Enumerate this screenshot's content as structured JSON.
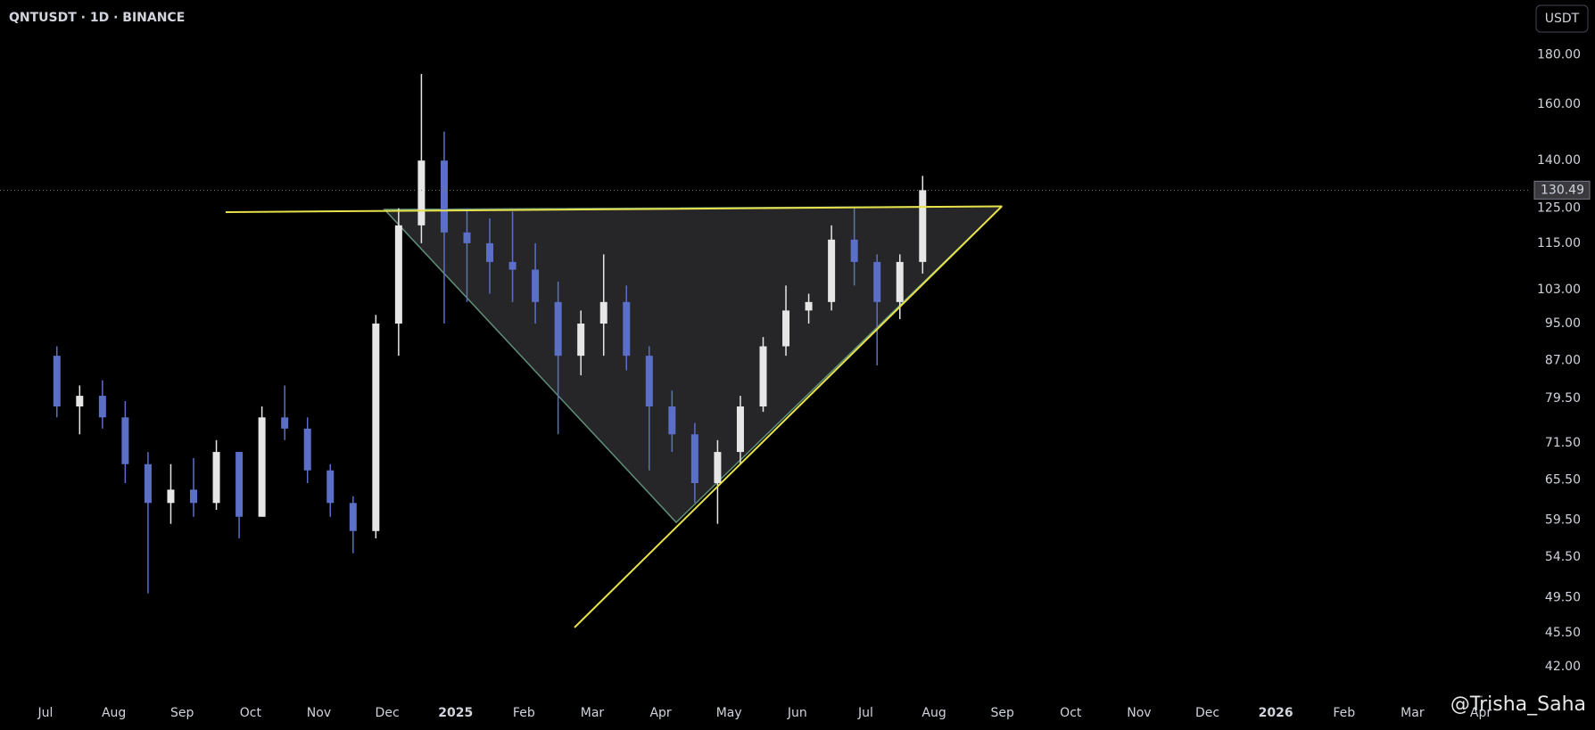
{
  "chart_data": {
    "type": "candlestick",
    "title": "QNTUSDT · 1D · BINANCE",
    "currency": "USDT",
    "watermark": "@Trisha_Saha",
    "log_scale": true,
    "grid": false,
    "up_color": "#e6e6e6",
    "down_color": "#5b6fc7",
    "x": [
      "2024-07",
      "2024-07",
      "2024-07",
      "2024-08",
      "2024-08",
      "2024-08",
      "2024-09",
      "2024-09",
      "2024-09",
      "2024-10",
      "2024-10",
      "2024-10",
      "2024-11",
      "2024-11",
      "2024-11",
      "2024-12",
      "2024-12",
      "2024-12",
      "2025-01",
      "2025-01",
      "2025-01",
      "2025-02",
      "2025-02",
      "2025-02",
      "2025-03",
      "2025-03",
      "2025-03",
      "2025-04",
      "2025-04",
      "2025-04",
      "2025-05",
      "2025-05",
      "2025-05",
      "2025-06",
      "2025-06",
      "2025-06",
      "2025-07",
      "2025-07",
      "2025-07"
    ],
    "open": [
      88,
      78,
      80,
      76,
      68,
      62,
      64,
      62,
      70,
      60,
      76,
      74,
      67,
      62,
      58,
      95,
      120,
      140,
      118,
      115,
      110,
      108,
      100,
      88,
      95,
      100,
      88,
      78,
      73,
      65,
      70,
      78,
      90,
      98,
      100,
      116,
      110,
      100,
      110
    ],
    "high": [
      90,
      82,
      83,
      79,
      70,
      68,
      69,
      72,
      70,
      78,
      82,
      76,
      68,
      63,
      97,
      125,
      172,
      150,
      125,
      122,
      124,
      115,
      105,
      98,
      112,
      104,
      90,
      81,
      75,
      72,
      80,
      92,
      104,
      102,
      120,
      125,
      112,
      112,
      135
    ],
    "low": [
      76,
      73,
      74,
      65,
      50,
      59,
      60,
      61,
      57,
      60,
      72,
      65,
      60,
      55,
      57,
      88,
      115,
      95,
      100,
      102,
      100,
      95,
      73,
      84,
      88,
      85,
      67,
      70,
      62,
      59,
      68,
      77,
      88,
      95,
      98,
      104,
      86,
      96,
      107
    ],
    "close": [
      78,
      80,
      76,
      68,
      62,
      64,
      62,
      70,
      60,
      76,
      74,
      67,
      62,
      58,
      95,
      120,
      140,
      118,
      115,
      110,
      108,
      100,
      88,
      95,
      100,
      88,
      78,
      73,
      65,
      70,
      78,
      90,
      98,
      100,
      116,
      110,
      100,
      110,
      130.49
    ],
    "xlim": [
      "2024-07",
      "2026-04"
    ],
    "xticks": [
      {
        "value": "2024-07",
        "label": "Jul"
      },
      {
        "value": "2024-08",
        "label": "Aug"
      },
      {
        "value": "2024-09",
        "label": "Sep"
      },
      {
        "value": "2024-10",
        "label": "Oct"
      },
      {
        "value": "2024-11",
        "label": "Nov"
      },
      {
        "value": "2024-12",
        "label": "Dec"
      },
      {
        "value": "2025-01",
        "label": "2025"
      },
      {
        "value": "2025-02",
        "label": "Feb"
      },
      {
        "value": "2025-03",
        "label": "Mar"
      },
      {
        "value": "2025-04",
        "label": "Apr"
      },
      {
        "value": "2025-05",
        "label": "May"
      },
      {
        "value": "2025-06",
        "label": "Jun"
      },
      {
        "value": "2025-07",
        "label": "Jul"
      },
      {
        "value": "2025-08",
        "label": "Aug"
      },
      {
        "value": "2025-09",
        "label": "Sep"
      },
      {
        "value": "2025-10",
        "label": "Oct"
      },
      {
        "value": "2025-11",
        "label": "Nov"
      },
      {
        "value": "2025-12",
        "label": "Dec"
      },
      {
        "value": "2026-01",
        "label": "2026"
      },
      {
        "value": "2026-02",
        "label": "Feb"
      },
      {
        "value": "2026-03",
        "label": "Mar"
      },
      {
        "value": "2026-04",
        "label": "Apr"
      }
    ],
    "ylim": [
      42,
      180
    ],
    "yticks": [
      {
        "value": 180,
        "label": "180.00"
      },
      {
        "value": 160,
        "label": "160.00"
      },
      {
        "value": 140,
        "label": "140.00"
      },
      {
        "value": 125,
        "label": "125.00"
      },
      {
        "value": 115,
        "label": "115.00"
      },
      {
        "value": 103,
        "label": "103.00"
      },
      {
        "value": 95,
        "label": "95.00"
      },
      {
        "value": 87,
        "label": "87.00"
      },
      {
        "value": 79.5,
        "label": "79.50"
      },
      {
        "value": 71.5,
        "label": "71.50"
      },
      {
        "value": 65.5,
        "label": "65.50"
      },
      {
        "value": 59.5,
        "label": "59.50"
      },
      {
        "value": 54.5,
        "label": "54.50"
      },
      {
        "value": 49.5,
        "label": "49.50"
      },
      {
        "value": 45.5,
        "label": "45.50"
      },
      {
        "value": 42,
        "label": "42.00"
      }
    ],
    "last_price": {
      "value": 130.49,
      "label": "130.49"
    }
  }
}
